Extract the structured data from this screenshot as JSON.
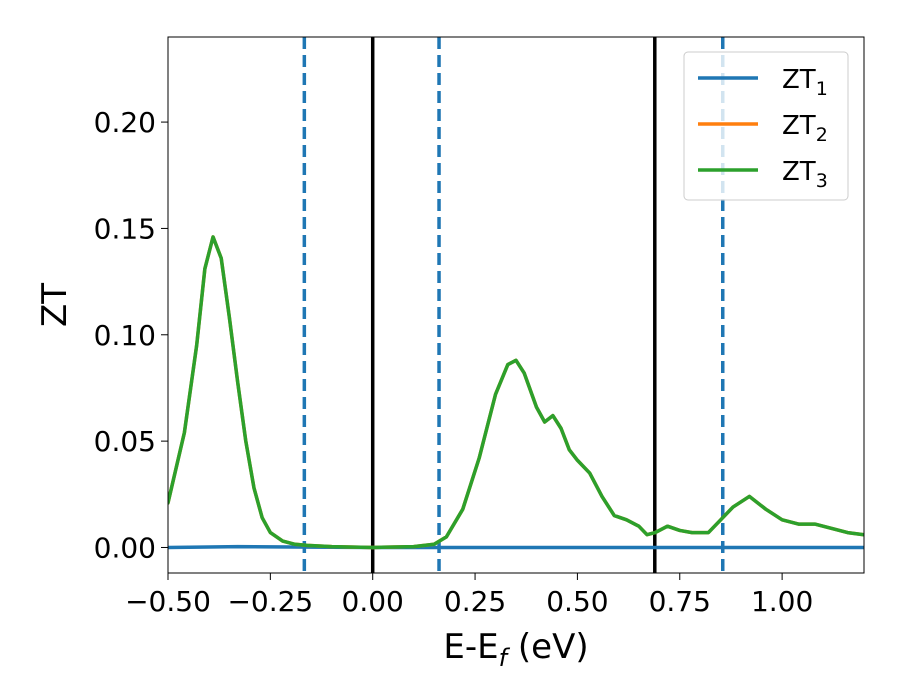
{
  "chart_data": {
    "type": "line",
    "xlabel": "E-E",
    "xlabel_sub": "f",
    "xlabel_unit": " (eV)",
    "ylabel": "ZT",
    "xlim": [
      -0.5,
      1.2
    ],
    "ylim": [
      -0.012,
      0.24
    ],
    "grid": false,
    "legend_position": "top-right",
    "x_ticks": [
      -0.5,
      -0.25,
      0.0,
      0.25,
      0.5,
      0.75,
      1.0
    ],
    "x_tick_labels": [
      "−0.50",
      "−0.25",
      "0.00",
      "0.25",
      "0.50",
      "0.75",
      "1.00"
    ],
    "y_ticks": [
      0.0,
      0.05,
      0.1,
      0.15,
      0.2
    ],
    "y_tick_labels": [
      "0.00",
      "0.05",
      "0.10",
      "0.15",
      "0.20"
    ],
    "vertical_lines": [
      {
        "x": -0.167,
        "style": "dashed",
        "color": "#1f77b4"
      },
      {
        "x": 0.0,
        "style": "solid",
        "color": "#000000"
      },
      {
        "x": 0.162,
        "style": "dashed",
        "color": "#1f77b4"
      },
      {
        "x": 0.689,
        "style": "solid",
        "color": "#000000"
      },
      {
        "x": 0.855,
        "style": "dashed",
        "color": "#1f77b4"
      }
    ],
    "series": [
      {
        "name": "ZT",
        "name_sub": "1",
        "color": "#1f77b4",
        "x": [
          -0.5,
          -0.4,
          -0.33,
          -0.2,
          0.0,
          0.2,
          0.4,
          0.6,
          0.8,
          1.0,
          1.2
        ],
        "y": [
          0.0,
          0.0002,
          0.0004,
          0.0002,
          0.0,
          0.0,
          0.0,
          0.0,
          0.0,
          0.0,
          0.0
        ]
      },
      {
        "name": "ZT",
        "name_sub": "2",
        "color": "#ff7f0e",
        "x": [
          -0.5,
          -0.46,
          -0.43,
          -0.41,
          -0.39,
          -0.37,
          -0.35,
          -0.33,
          -0.31,
          -0.29,
          -0.27,
          -0.25,
          -0.22,
          -0.19,
          -0.16,
          -0.1,
          0.0,
          0.1,
          0.15,
          0.18,
          0.22,
          0.26,
          0.3,
          0.33,
          0.35,
          0.37,
          0.4,
          0.42,
          0.44,
          0.46,
          0.48,
          0.5,
          0.53,
          0.56,
          0.59,
          0.62,
          0.65,
          0.67,
          0.69,
          0.72,
          0.75,
          0.78,
          0.82,
          0.85,
          0.88,
          0.92,
          0.96,
          1.0,
          1.04,
          1.08,
          1.12,
          1.16,
          1.2
        ],
        "y": [
          0.021,
          0.054,
          0.095,
          0.131,
          0.146,
          0.136,
          0.108,
          0.078,
          0.05,
          0.028,
          0.014,
          0.007,
          0.003,
          0.0015,
          0.001,
          0.0004,
          0.0,
          0.0004,
          0.0015,
          0.005,
          0.018,
          0.042,
          0.072,
          0.086,
          0.088,
          0.082,
          0.066,
          0.059,
          0.062,
          0.056,
          0.046,
          0.041,
          0.035,
          0.024,
          0.015,
          0.013,
          0.01,
          0.006,
          0.007,
          0.01,
          0.008,
          0.007,
          0.007,
          0.013,
          0.019,
          0.024,
          0.018,
          0.013,
          0.011,
          0.011,
          0.009,
          0.007,
          0.006
        ]
      },
      {
        "name": "ZT",
        "name_sub": "3",
        "color": "#2ca02c",
        "x": [
          -0.5,
          -0.46,
          -0.43,
          -0.41,
          -0.39,
          -0.37,
          -0.35,
          -0.33,
          -0.31,
          -0.29,
          -0.27,
          -0.25,
          -0.22,
          -0.19,
          -0.16,
          -0.1,
          0.0,
          0.1,
          0.15,
          0.18,
          0.22,
          0.26,
          0.3,
          0.33,
          0.35,
          0.37,
          0.4,
          0.42,
          0.44,
          0.46,
          0.48,
          0.5,
          0.53,
          0.56,
          0.59,
          0.62,
          0.65,
          0.67,
          0.69,
          0.72,
          0.75,
          0.78,
          0.82,
          0.85,
          0.88,
          0.92,
          0.96,
          1.0,
          1.04,
          1.08,
          1.12,
          1.16,
          1.2
        ],
        "y": [
          0.021,
          0.054,
          0.095,
          0.131,
          0.146,
          0.136,
          0.108,
          0.078,
          0.05,
          0.028,
          0.014,
          0.007,
          0.003,
          0.0015,
          0.001,
          0.0004,
          0.0,
          0.0004,
          0.0015,
          0.005,
          0.018,
          0.042,
          0.072,
          0.086,
          0.088,
          0.082,
          0.066,
          0.059,
          0.062,
          0.056,
          0.046,
          0.041,
          0.035,
          0.024,
          0.015,
          0.013,
          0.01,
          0.006,
          0.007,
          0.01,
          0.008,
          0.007,
          0.007,
          0.013,
          0.019,
          0.024,
          0.018,
          0.013,
          0.011,
          0.011,
          0.009,
          0.007,
          0.006
        ]
      }
    ]
  }
}
